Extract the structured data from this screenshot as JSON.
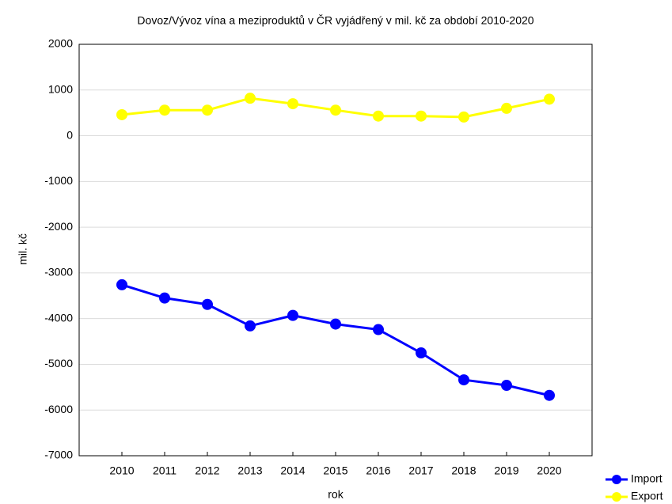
{
  "chart_data": {
    "type": "line",
    "title": "Dovoz/Vývoz vína a meziproduktů v ČR vyjádřený v mil. kč za období 2010-2020",
    "xlabel": "rok",
    "ylabel": "mil. kč",
    "categories": [
      "2010",
      "2011",
      "2012",
      "2013",
      "2014",
      "2015",
      "2016",
      "2017",
      "2018",
      "2019",
      "2020"
    ],
    "series": [
      {
        "name": "Import",
        "color": "#0000ff",
        "values": [
          -3260,
          -3550,
          -3690,
          -4160,
          -3930,
          -4120,
          -4240,
          -4750,
          -5340,
          -5460,
          -5680
        ]
      },
      {
        "name": "Export",
        "color": "#ffff00",
        "values": [
          460,
          560,
          560,
          820,
          700,
          560,
          430,
          430,
          410,
          600,
          800
        ]
      }
    ],
    "ylim": [
      -7000,
      2000
    ],
    "yticks": [
      -7000,
      -6000,
      -5000,
      -4000,
      -3000,
      -2000,
      -1000,
      0,
      1000,
      2000
    ],
    "grid": true,
    "legend": "bottom-right"
  }
}
